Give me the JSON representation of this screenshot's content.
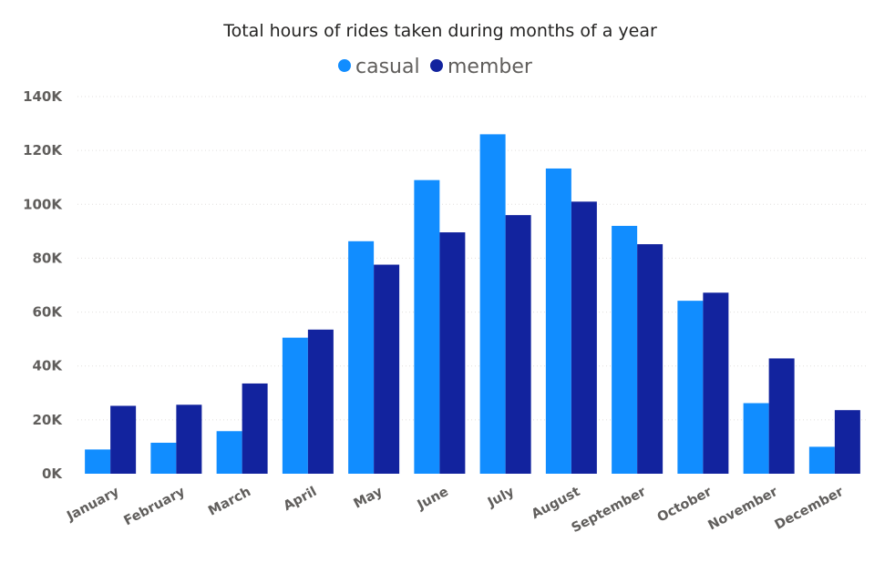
{
  "chart_data": {
    "type": "bar",
    "title": "Total hours of rides taken during months of a year",
    "categories": [
      "January",
      "February",
      "March",
      "April",
      "May",
      "June",
      "July",
      "August",
      "September",
      "October",
      "November",
      "December"
    ],
    "series": [
      {
        "name": "casual",
        "color": "#118dff",
        "values": [
          9000,
          11500,
          15800,
          50500,
          86300,
          109000,
          126000,
          113300,
          92000,
          64200,
          26200,
          10000
        ]
      },
      {
        "name": "member",
        "color": "#12239e",
        "values": [
          25200,
          25600,
          33500,
          53500,
          77600,
          89600,
          96000,
          101000,
          85200,
          67200,
          42800,
          23600
        ]
      }
    ],
    "yticks": [
      "0K",
      "20K",
      "40K",
      "60K",
      "80K",
      "100K",
      "120K",
      "140K"
    ],
    "ylim": [
      0,
      140000
    ],
    "xlabel": "",
    "ylabel": "",
    "grid": true,
    "legend_position": "top-center"
  }
}
